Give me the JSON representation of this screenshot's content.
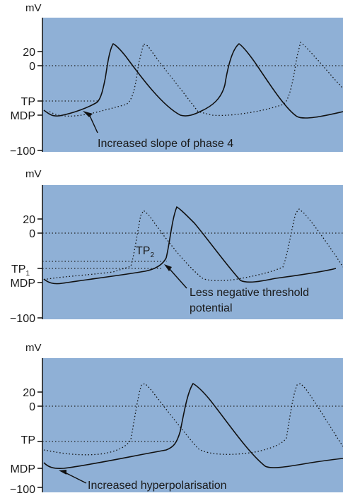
{
  "colors": {
    "plot_background": "#8FB0D6",
    "curve": "#111111",
    "reference_line": "#222222",
    "page_background": "#ffffff"
  },
  "panels": [
    {
      "unit": "mV",
      "y_labels": [
        "20",
        "0",
        "TP",
        "MDP",
        "−100"
      ],
      "annotation": [
        "Increased slope of phase 4"
      ]
    },
    {
      "unit": "mV",
      "y_labels": [
        "20",
        "0",
        "TP",
        "MDP",
        "−100"
      ],
      "tp_subscript": "1",
      "inner_label": "TP",
      "inner_subscript": "2",
      "annotation": [
        "Less negative threshold",
        "potential"
      ]
    },
    {
      "unit": "mV",
      "y_labels": [
        "20",
        "0",
        "TP",
        "MDP",
        "−100"
      ],
      "annotation": [
        "Increased hyperpolarisation"
      ]
    }
  ]
}
